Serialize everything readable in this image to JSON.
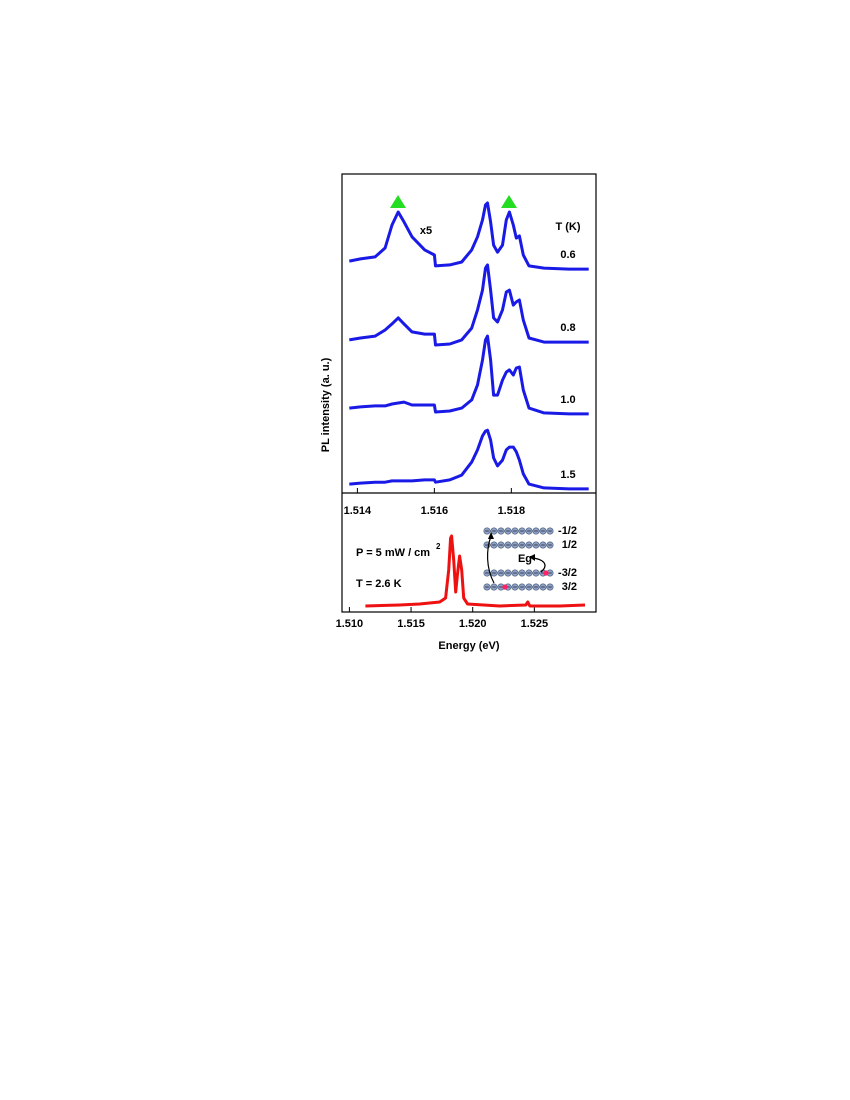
{
  "chart_data": [
    {
      "type": "line",
      "ylabel": "PL intensity (a. u.)",
      "legend_title": "T (K)",
      "annotation": "x5",
      "xlim": [
        1.5136,
        1.5202
      ],
      "xticks": [
        1.514,
        1.516,
        1.518
      ],
      "ylim": [
        0,
        100
      ],
      "x": [
        1.51379,
        1.51408,
        1.51446,
        1.51472,
        1.5149,
        1.51506,
        1.51521,
        1.51542,
        1.51575,
        1.516,
        1.51603,
        1.5164,
        1.51671,
        1.51697,
        1.51712,
        1.51725,
        1.51733,
        1.51738,
        1.51746,
        1.51754,
        1.51764,
        1.51777,
        1.51787,
        1.51795,
        1.51805,
        1.51813,
        1.51821,
        1.51831,
        1.51846,
        1.51885,
        1.5195,
        1.52001
      ],
      "series": [
        {
          "name": "0.6",
          "color": "#1a1ae6",
          "values": [
            72.7,
            73.4,
            74.0,
            76.8,
            84.0,
            88.1,
            85.0,
            80.3,
            76.2,
            74.6,
            71.2,
            71.5,
            72.4,
            76.2,
            80.3,
            85.6,
            90.3,
            90.9,
            85.0,
            77.7,
            75.5,
            77.7,
            85.6,
            88.1,
            84.0,
            79.9,
            80.6,
            74.6,
            71.2,
            70.5,
            70.2,
            70.2
          ]
        },
        {
          "name": "0.8",
          "color": "#1a1ae6",
          "values": [
            48.0,
            48.6,
            49.2,
            51.1,
            53.0,
            54.9,
            53.0,
            50.5,
            49.8,
            49.8,
            46.4,
            46.7,
            48.0,
            51.7,
            57.4,
            63.6,
            70.5,
            71.5,
            63.6,
            54.9,
            53.6,
            57.4,
            63.0,
            63.6,
            58.9,
            59.9,
            60.5,
            54.2,
            48.6,
            47.3,
            47.3,
            47.3
          ]
        },
        {
          "name": "1.0",
          "color": "#1a1ae6",
          "values": [
            26.6,
            27.0,
            27.3,
            27.3,
            27.9,
            28.2,
            28.5,
            27.6,
            27.6,
            27.6,
            25.4,
            25.7,
            26.6,
            29.2,
            33.9,
            41.7,
            48.0,
            49.2,
            41.7,
            30.7,
            30.7,
            35.4,
            37.9,
            38.6,
            37.0,
            39.2,
            39.5,
            32.3,
            26.6,
            25.1,
            24.8,
            24.8
          ]
        },
        {
          "name": "1.5",
          "color": "#1a1ae6",
          "values": [
            2.8,
            3.1,
            3.4,
            3.4,
            3.8,
            3.8,
            3.8,
            3.8,
            4.1,
            4.1,
            3.4,
            4.1,
            5.6,
            9.7,
            13.5,
            17.9,
            19.4,
            19.7,
            16.6,
            11.0,
            8.5,
            10.3,
            13.5,
            14.4,
            14.4,
            12.9,
            10.3,
            6.0,
            2.8,
            1.6,
            1.3,
            1.3
          ]
        }
      ]
    },
    {
      "type": "line",
      "xlabel": "Energy (eV)",
      "annotations": [
        "P = 5 mW / cm",
        "2",
        "T = 2.6 K"
      ],
      "inset": {
        "levels": [
          "-1/2",
          "1/2",
          "-3/2",
          "3/2"
        ],
        "gap_label": "Eg"
      },
      "xlim": [
        1.5094,
        1.53
      ],
      "xticks": [
        {
          "value": 1.51,
          "label": "1.510"
        },
        {
          "value": 1.515,
          "label": "1.515"
        },
        {
          "value": 1.52,
          "label": "1.520"
        },
        {
          "value": 1.525,
          "label": "1.525"
        }
      ],
      "ylim": [
        0,
        100
      ],
      "x": [
        1.5113,
        1.51407,
        1.51569,
        1.51732,
        1.5178,
        1.51805,
        1.51821,
        1.51829,
        1.51846,
        1.51862,
        1.51878,
        1.51894,
        1.51911,
        1.51927,
        1.51959,
        1.5222,
        1.52431,
        1.52447,
        1.52463,
        1.52707,
        1.52911
      ],
      "series": [
        {
          "color": "#ee1111",
          "values": [
            5.0,
            5.9,
            6.7,
            8.4,
            11.8,
            35.3,
            62.2,
            63.9,
            43.7,
            16.8,
            33.6,
            47.1,
            35.3,
            11.8,
            6.7,
            5.0,
            5.9,
            8.4,
            5.0,
            5.0,
            5.9
          ]
        }
      ]
    }
  ]
}
